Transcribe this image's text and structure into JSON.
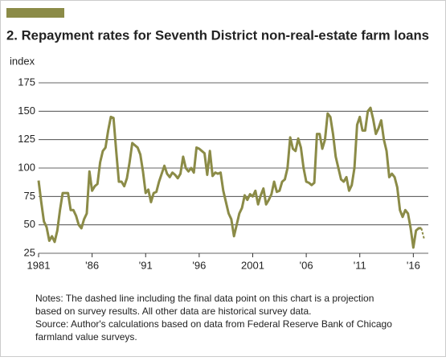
{
  "chart_data": {
    "type": "line",
    "title": "2. Repayment rates for Seventh District non-real-estate farm loans",
    "y_label": "index",
    "notes": [
      "Notes: The dashed line including the final data point on this chart is a projection",
      "based on survey results. All other data are historical survey data.",
      "Source: Author's calculations based on data from Federal Reserve Bank of Chicago",
      "farmland value surveys."
    ],
    "x": [
      1981,
      1981.25,
      1981.5,
      1981.75,
      1982,
      1982.25,
      1982.5,
      1982.75,
      1983,
      1983.25,
      1983.5,
      1983.75,
      1984,
      1984.25,
      1984.5,
      1984.75,
      1985,
      1985.25,
      1985.5,
      1985.75,
      1986,
      1986.25,
      1986.5,
      1986.75,
      1987,
      1987.25,
      1987.5,
      1987.75,
      1988,
      1988.25,
      1988.5,
      1988.75,
      1989,
      1989.25,
      1989.5,
      1989.75,
      1990,
      1990.25,
      1990.5,
      1990.75,
      1991,
      1991.25,
      1991.5,
      1991.75,
      1992,
      1992.25,
      1992.5,
      1992.75,
      1993,
      1993.25,
      1993.5,
      1993.75,
      1994,
      1994.25,
      1994.5,
      1994.75,
      1995,
      1995.25,
      1995.5,
      1995.75,
      1996,
      1996.25,
      1996.5,
      1996.75,
      1997,
      1997.25,
      1997.5,
      1997.75,
      1998,
      1998.25,
      1998.5,
      1998.75,
      1999,
      1999.25,
      1999.5,
      1999.75,
      2000,
      2000.25,
      2000.5,
      2000.75,
      2001,
      2001.25,
      2001.5,
      2001.75,
      2002,
      2002.25,
      2002.5,
      2002.75,
      2003,
      2003.25,
      2003.5,
      2003.75,
      2004,
      2004.25,
      2004.5,
      2004.75,
      2005,
      2005.25,
      2005.5,
      2005.75,
      2006,
      2006.25,
      2006.5,
      2006.75,
      2007,
      2007.25,
      2007.5,
      2007.75,
      2008,
      2008.25,
      2008.5,
      2008.75,
      2009,
      2009.25,
      2009.5,
      2009.75,
      2010,
      2010.25,
      2010.5,
      2010.75,
      2011,
      2011.25,
      2011.5,
      2011.75,
      2012,
      2012.25,
      2012.5,
      2012.75,
      2013,
      2013.25,
      2013.5,
      2013.75,
      2014,
      2014.25,
      2014.5,
      2014.75,
      2015,
      2015.25,
      2015.5,
      2015.75,
      2016,
      2016.25,
      2016.5,
      2016.75,
      2017
    ],
    "series": [
      {
        "color": "#8b8b47",
        "dashed": false,
        "values": [
          89,
          70,
          53,
          48,
          36,
          40,
          35,
          45,
          63,
          78,
          78,
          78,
          63,
          63,
          58,
          50,
          47,
          55,
          60,
          97,
          80,
          84,
          86,
          105,
          115,
          118,
          133,
          145,
          144,
          115,
          88,
          88,
          84,
          91,
          105,
          122,
          120,
          118,
          112,
          97,
          78,
          81,
          70,
          78,
          79,
          88,
          95,
          102,
          95,
          92,
          96,
          94,
          91,
          95,
          110,
          100,
          97,
          100,
          96,
          118,
          117,
          115,
          113,
          94,
          115,
          93,
          96,
          95,
          96,
          80,
          70,
          60,
          55,
          40,
          50,
          60,
          65,
          76,
          72,
          77,
          75,
          80,
          68,
          76,
          82,
          68,
          72,
          77,
          88,
          79,
          80,
          88,
          90,
          100,
          127,
          117,
          115,
          126,
          118,
          100,
          88,
          87,
          85,
          87,
          130,
          130,
          117,
          125,
          148,
          145,
          130,
          110,
          100,
          90,
          88,
          92,
          80,
          85,
          100,
          138,
          145,
          133,
          133,
          150,
          153,
          143,
          130,
          135,
          142,
          125,
          115,
          92,
          95,
          92,
          83,
          63,
          57,
          63,
          60,
          47,
          30,
          45,
          47,
          47,
          null
        ]
      },
      {
        "color": "#8b8b47",
        "dashed": true,
        "values": [
          null,
          null,
          null,
          null,
          null,
          null,
          null,
          null,
          null,
          null,
          null,
          null,
          null,
          null,
          null,
          null,
          null,
          null,
          null,
          null,
          null,
          null,
          null,
          null,
          null,
          null,
          null,
          null,
          null,
          null,
          null,
          null,
          null,
          null,
          null,
          null,
          null,
          null,
          null,
          null,
          null,
          null,
          null,
          null,
          null,
          null,
          null,
          null,
          null,
          null,
          null,
          null,
          null,
          null,
          null,
          null,
          null,
          null,
          null,
          null,
          null,
          null,
          null,
          null,
          null,
          null,
          null,
          null,
          null,
          null,
          null,
          null,
          null,
          null,
          null,
          null,
          null,
          null,
          null,
          null,
          null,
          null,
          null,
          null,
          null,
          null,
          null,
          null,
          null,
          null,
          null,
          null,
          null,
          null,
          null,
          null,
          null,
          null,
          null,
          null,
          null,
          null,
          null,
          null,
          null,
          null,
          null,
          null,
          null,
          null,
          null,
          null,
          null,
          null,
          null,
          null,
          null,
          null,
          null,
          null,
          null,
          null,
          null,
          null,
          null,
          null,
          null,
          null,
          null,
          null,
          null,
          null,
          null,
          null,
          null,
          null,
          null,
          null,
          null,
          null,
          null,
          null,
          null,
          47,
          38
        ]
      }
    ],
    "xlim": [
      1981,
      2017.4
    ],
    "xticks": [
      1981,
      {
        "value": 1986,
        "label": "'86"
      },
      {
        "value": 1991,
        "label": "'91"
      },
      {
        "value": 1996,
        "label": "'96"
      },
      2001,
      {
        "value": 2006,
        "label": "'06"
      },
      {
        "value": 2011,
        "label": "'11"
      },
      {
        "value": 2016,
        "label": "'16"
      }
    ],
    "ylim": [
      25,
      175
    ],
    "yticks": [
      25,
      50,
      75,
      100,
      125,
      150,
      175
    ],
    "grid": true
  }
}
